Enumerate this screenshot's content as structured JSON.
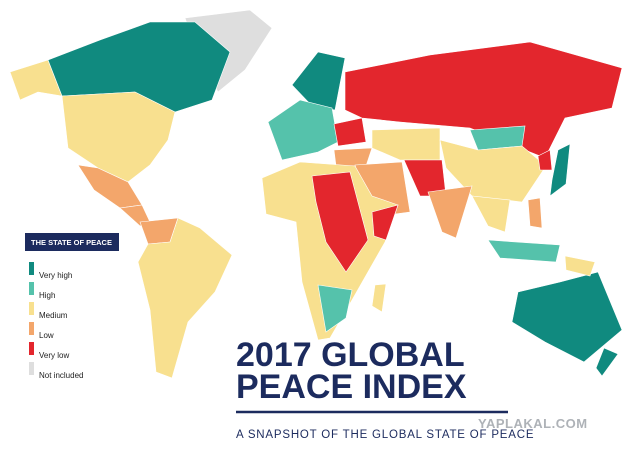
{
  "title": {
    "lines": [
      "2017 GLOBAL",
      "PEACE INDEX"
    ]
  },
  "subtitle": "A SNAPSHOT OF THE GLOBAL STATE OF PEACE",
  "legend": {
    "title": "THE STATE OF PEACE",
    "items": [
      {
        "label": "Very high",
        "color": "#108a7f"
      },
      {
        "label": "High",
        "color": "#55c2ab"
      },
      {
        "label": "Medium",
        "color": "#f8e08f"
      },
      {
        "label": "Low",
        "color": "#f3a66b"
      },
      {
        "label": "Very low",
        "color": "#e3262d"
      },
      {
        "label": "Not included",
        "color": "#dedede"
      }
    ]
  },
  "watermark": "YAPLAKAL.COM"
}
